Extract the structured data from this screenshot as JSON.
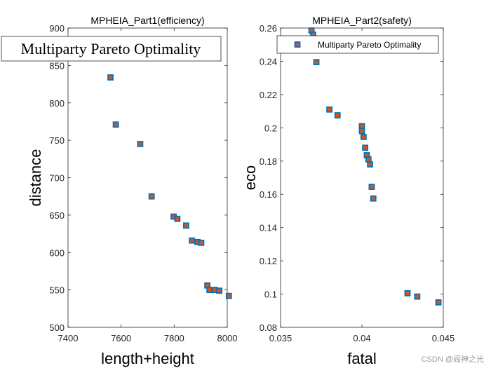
{
  "watermark": "CSDN @阎神之光",
  "chart_data": [
    {
      "type": "scatter",
      "title": "MPHEIA_Part1(efficiency)",
      "xlabel": "length+height",
      "ylabel": "distance",
      "xlim": [
        7400,
        8000
      ],
      "ylim": [
        500,
        900
      ],
      "xticks": [
        "7400",
        "7600",
        "7800",
        "8000"
      ],
      "yticks": [
        "500",
        "550",
        "600",
        "650",
        "700",
        "750",
        "800",
        "850",
        "900"
      ],
      "legend": {
        "label": "Multiparty Pareto Optimality",
        "position": "top"
      },
      "series": [
        {
          "name": "Multiparty Pareto Optimality",
          "marker_color": "#d95319",
          "edge_color": "#0072bd",
          "points": [
            [
              7560,
              834
            ],
            [
              7580,
              771
            ],
            [
              7672,
              745
            ],
            [
              7715,
              675
            ],
            [
              7798,
              648
            ],
            [
              7812,
              645
            ],
            [
              7845,
              636
            ],
            [
              7867,
              616
            ],
            [
              7888,
              614
            ],
            [
              7902,
              613
            ],
            [
              7925,
              556
            ],
            [
              7933,
              550
            ],
            [
              7953,
              550
            ],
            [
              7970,
              549
            ],
            [
              8006,
              542
            ]
          ]
        }
      ]
    },
    {
      "type": "scatter",
      "title": "MPHEIA_Part2(safety)",
      "xlabel": "fatal",
      "ylabel": "eco",
      "xlim": [
        0.035,
        0.045
      ],
      "ylim": [
        0.08,
        0.26
      ],
      "xticks": [
        "0.035",
        "0.04",
        "0.045"
      ],
      "yticks": [
        "0.08",
        "0.1",
        "0.12",
        "0.14",
        "0.16",
        "0.18",
        "0.2",
        "0.22",
        "0.24",
        "0.26"
      ],
      "legend": {
        "label": "Multiparty Pareto Optimality",
        "position": "top-right"
      },
      "series": [
        {
          "name": "Multiparty Pareto Optimality",
          "marker_color": "#d95319",
          "edge_color": "#0072bd",
          "points": [
            [
              0.0369,
              0.2585
            ],
            [
              0.037,
              0.256
            ],
            [
              0.0372,
              0.2395
            ],
            [
              0.038,
              0.211
            ],
            [
              0.0385,
              0.2075
            ],
            [
              0.04,
              0.201
            ],
            [
              0.04,
              0.198
            ],
            [
              0.0401,
              0.1945
            ],
            [
              0.0402,
              0.188
            ],
            [
              0.0403,
              0.1835
            ],
            [
              0.0404,
              0.181
            ],
            [
              0.0405,
              0.178
            ],
            [
              0.0406,
              0.1645
            ],
            [
              0.0407,
              0.1575
            ],
            [
              0.0428,
              0.1005
            ],
            [
              0.0434,
              0.0985
            ],
            [
              0.0447,
              0.095
            ]
          ]
        }
      ]
    }
  ]
}
